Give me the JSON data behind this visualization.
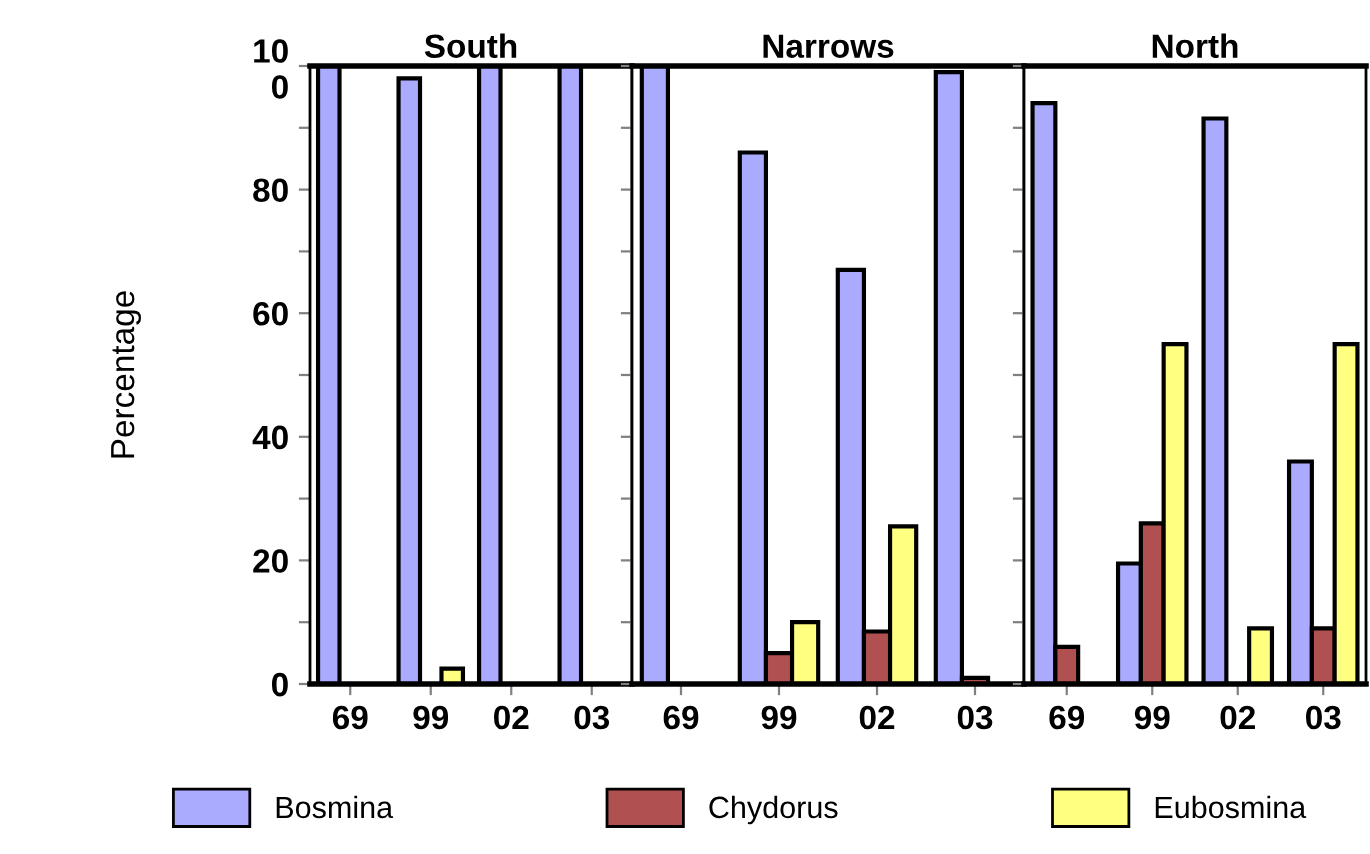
{
  "chart_data": [
    {
      "type": "bar",
      "title": "South",
      "ylabel": "Percentage",
      "categories": [
        "69",
        "99",
        "02",
        "03"
      ],
      "series": [
        {
          "name": "Bosmina",
          "color": "#aaaaff",
          "values": [
            100,
            98,
            100,
            100
          ]
        },
        {
          "name": "Chydorus",
          "color": "#b05050",
          "values": [
            null,
            null,
            null,
            null
          ]
        },
        {
          "name": "Eubosmina",
          "color": "#ffff80",
          "values": [
            null,
            2.5,
            null,
            null
          ]
        }
      ],
      "ylim": [
        0,
        100
      ],
      "yticks": [
        0,
        {
          "value": 10,
          "label": null
        },
        20,
        {
          "value": 30,
          "label": null
        },
        40,
        {
          "value": 50,
          "label": null
        },
        60,
        {
          "value": 70,
          "label": null
        },
        80,
        {
          "value": 90,
          "label": null
        },
        {
          "value": 100,
          "label": "10\n0"
        }
      ],
      "grid": false,
      "legend": "bottom"
    },
    {
      "type": "bar",
      "title": "Narrows",
      "categories": [
        "69",
        "99",
        "02",
        "03"
      ],
      "series": [
        {
          "color": "#aaaaff",
          "values": [
            100,
            86,
            67,
            99
          ]
        },
        {
          "color": "#b05050",
          "values": [
            null,
            5,
            8.5,
            1
          ]
        },
        {
          "color": "#ffff80",
          "values": [
            null,
            10,
            25.5,
            null
          ]
        }
      ],
      "ylim": [
        0,
        100
      ],
      "yticks": [
        0,
        {
          "value": 10,
          "label": null
        },
        20,
        {
          "value": 30,
          "label": null
        },
        40,
        {
          "value": 50,
          "label": null
        },
        60,
        {
          "value": 70,
          "label": null
        },
        80,
        {
          "value": 90,
          "label": null
        },
        {
          "value": 100,
          "label": null
        }
      ],
      "grid": false,
      "tick_labels": "x"
    },
    {
      "type": "bar",
      "title": "North",
      "categories": [
        "69",
        "99",
        "02",
        "03"
      ],
      "series": [
        {
          "color": "#aaaaff",
          "values": [
            94,
            19.5,
            91.5,
            36
          ]
        },
        {
          "color": "#b05050",
          "values": [
            6,
            26,
            null,
            9
          ]
        },
        {
          "color": "#ffff80",
          "values": [
            null,
            55,
            9,
            55
          ]
        }
      ],
      "ylim": [
        0,
        100
      ],
      "yticks": [
        0,
        {
          "value": 10,
          "label": null
        },
        20,
        {
          "value": 30,
          "label": null
        },
        40,
        {
          "value": 50,
          "label": null
        },
        60,
        {
          "value": 70,
          "label": null
        },
        80,
        {
          "value": 90,
          "label": null
        },
        {
          "value": 100,
          "label": null
        }
      ],
      "grid": false,
      "tick_labels": "x"
    }
  ]
}
